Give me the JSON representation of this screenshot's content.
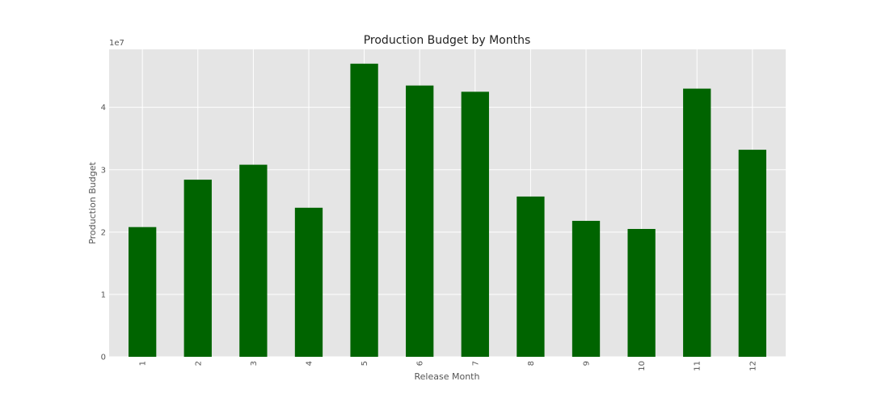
{
  "chart_data": {
    "type": "bar",
    "title": "Production Budget by Months",
    "xlabel": "Release Month",
    "ylabel": "Production Budget",
    "y_offset_label": "1e7",
    "y_scale": 10000000,
    "categories": [
      "1",
      "2",
      "3",
      "4",
      "5",
      "6",
      "7",
      "8",
      "9",
      "10",
      "11",
      "12"
    ],
    "values": [
      20800000,
      28400000,
      30800000,
      23900000,
      47000000,
      43500000,
      42500000,
      25700000,
      21800000,
      20500000,
      43000000,
      33200000
    ],
    "yticks": [
      0,
      1,
      2,
      3,
      4
    ],
    "ylim": [
      0,
      49300000
    ],
    "grid": true,
    "legend": "none",
    "colors": {
      "bar": "#006400",
      "plot_background": "#e5e5e5",
      "grid": "#ffffff"
    }
  }
}
